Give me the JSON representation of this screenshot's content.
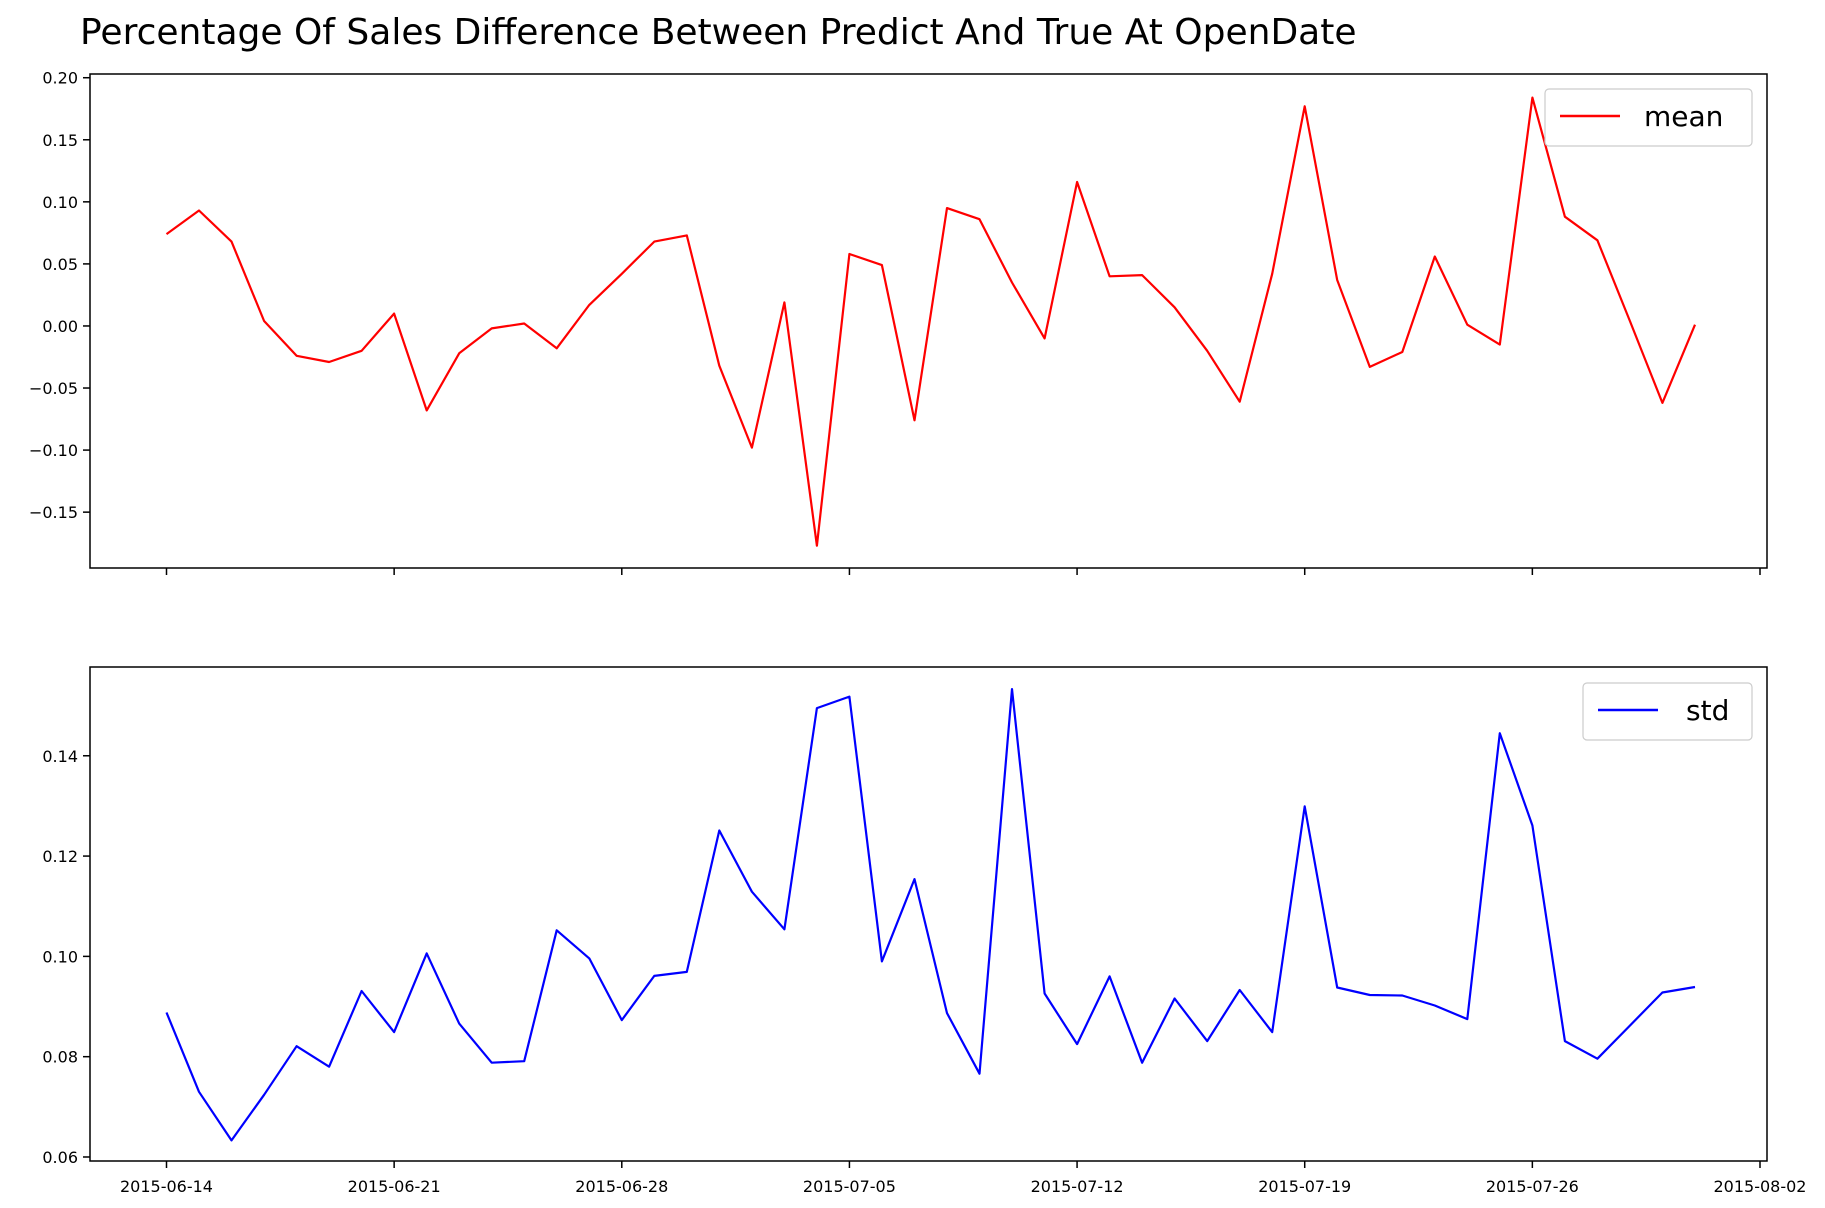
{
  "chart_data": {
    "title": "Percentage Of Sales Difference Between Predict And True At OpenDate",
    "type": "line",
    "x": [
      "2015-06-14",
      "2015-06-15",
      "2015-06-16",
      "2015-06-17",
      "2015-06-18",
      "2015-06-19",
      "2015-06-20",
      "2015-06-21",
      "2015-06-22",
      "2015-06-23",
      "2015-06-24",
      "2015-06-25",
      "2015-06-26",
      "2015-06-27",
      "2015-06-28",
      "2015-06-29",
      "2015-06-30",
      "2015-07-01",
      "2015-07-02",
      "2015-07-03",
      "2015-07-04",
      "2015-07-05",
      "2015-07-06",
      "2015-07-07",
      "2015-07-08",
      "2015-07-09",
      "2015-07-10",
      "2015-07-11",
      "2015-07-12",
      "2015-07-13",
      "2015-07-14",
      "2015-07-15",
      "2015-07-16",
      "2015-07-17",
      "2015-07-18",
      "2015-07-19",
      "2015-07-20",
      "2015-07-21",
      "2015-07-22",
      "2015-07-23",
      "2015-07-24",
      "2015-07-25",
      "2015-07-26",
      "2015-07-27",
      "2015-07-28",
      "2015-07-29",
      "2015-07-30",
      "2015-07-31"
    ],
    "xlim": [
      "2015-06-14",
      "2015-08-02"
    ],
    "x_ticks": [
      "2015-06-14",
      "2015-06-21",
      "2015-06-28",
      "2015-07-05",
      "2015-07-12",
      "2015-07-19",
      "2015-07-26",
      "2015-08-02"
    ],
    "subplots": [
      {
        "series": [
          {
            "name": "mean",
            "color": "#ff0000",
            "values": [
              0.074,
              0.093,
              0.068,
              0.004,
              -0.024,
              -0.029,
              -0.02,
              0.01,
              -0.068,
              -0.022,
              -0.002,
              0.002,
              -0.018,
              0.017,
              0.042,
              0.068,
              0.073,
              -0.032,
              -0.098,
              0.019,
              -0.177,
              0.058,
              0.049,
              -0.076,
              0.095,
              0.086,
              0.035,
              -0.01,
              0.116,
              0.04,
              0.041,
              0.015,
              -0.02,
              -0.061,
              0.042,
              0.177,
              0.037,
              -0.033,
              -0.021,
              0.056,
              0.001,
              -0.015,
              0.184,
              0.088,
              0.069,
              0.004,
              -0.062,
              0.001
            ]
          }
        ],
        "ylim": [
          -0.195,
          0.203
        ],
        "y_ticks": [
          "0.20",
          "0.15",
          "0.10",
          "0.05",
          "0.00",
          "−0.05",
          "−0.10",
          "−0.15"
        ],
        "legend_position": "upper right"
      },
      {
        "series": [
          {
            "name": "std",
            "color": "#0000ff",
            "values": [
              0.0888,
              0.073,
              0.0633,
              0.0724,
              0.0821,
              0.078,
              0.0931,
              0.0849,
              0.1006,
              0.0866,
              0.0788,
              0.0791,
              0.1052,
              0.0996,
              0.0873,
              0.0961,
              0.0969,
              0.1251,
              0.1129,
              0.1054,
              0.1495,
              0.1518,
              0.099,
              0.1154,
              0.0887,
              0.0766,
              0.1533,
              0.0926,
              0.0825,
              0.096,
              0.0788,
              0.0916,
              0.0831,
              0.0933,
              0.0849,
              0.1299,
              0.0938,
              0.0923,
              0.0922,
              0.0902,
              0.0875,
              0.1445,
              0.1261,
              0.0831,
              0.0796,
              0.0862,
              0.0928,
              0.0939
            ]
          }
        ],
        "ylim": [
          0.0592,
          0.1577
        ],
        "y_ticks": [
          "0.14",
          "0.12",
          "0.10",
          "0.08",
          "0.06"
        ],
        "legend_position": "upper right"
      }
    ],
    "grid": false
  }
}
